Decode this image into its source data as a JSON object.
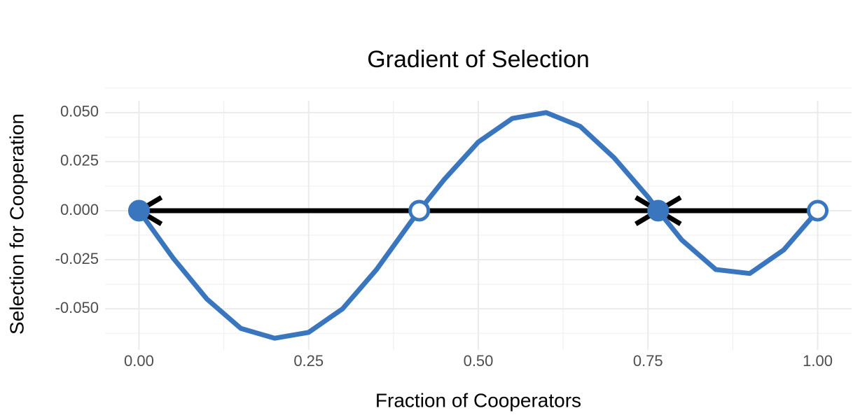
{
  "chart_data": {
    "type": "line",
    "title": "Gradient of Selection",
    "x_label": "Fraction of Cooperators",
    "y_label": "Selection for Cooperation",
    "x": [
      0,
      0.05,
      0.1,
      0.15,
      0.2,
      0.25,
      0.3,
      0.35,
      0.4,
      0.413,
      0.45,
      0.5,
      0.55,
      0.6,
      0.65,
      0.7,
      0.75,
      0.765,
      0.8,
      0.85,
      0.9,
      0.95,
      1
    ],
    "series": [
      {
        "name": "Selection",
        "color": "#3a76bd",
        "values": [
          0,
          -0.024,
          -0.045,
          -0.06,
          -0.065,
          -0.062,
          -0.05,
          -0.03,
          -0.006,
          0,
          0.016,
          0.035,
          0.047,
          0.05,
          0.043,
          0.027,
          0.007,
          0,
          -0.015,
          -0.03,
          -0.032,
          -0.02,
          0
        ]
      }
    ],
    "fixed_points": [
      {
        "x": 0,
        "y": 0,
        "stable": true
      },
      {
        "x": 0.413,
        "y": 0,
        "stable": false
      },
      {
        "x": 0.765,
        "y": 0,
        "stable": true
      },
      {
        "x": 1,
        "y": 0,
        "stable": false
      }
    ],
    "xlim": [
      -0.05,
      1.05
    ],
    "ylim": [
      -0.071,
      0.056
    ],
    "xticks": [
      {
        "value": 0,
        "label": "0.00"
      },
      {
        "value": 0.25,
        "label": "0.25"
      },
      {
        "value": 0.5,
        "label": "0.50"
      },
      {
        "value": 0.75,
        "label": "0.75"
      },
      {
        "value": 1,
        "label": "1.00"
      }
    ],
    "yticks": [
      {
        "value": -0.05,
        "label": "-0.050"
      },
      {
        "value": -0.025,
        "label": "-0.025"
      },
      {
        "value": 0,
        "label": "0.000"
      },
      {
        "value": 0.025,
        "label": "0.025"
      },
      {
        "value": 0.05,
        "label": "0.050"
      }
    ],
    "grid": true
  }
}
